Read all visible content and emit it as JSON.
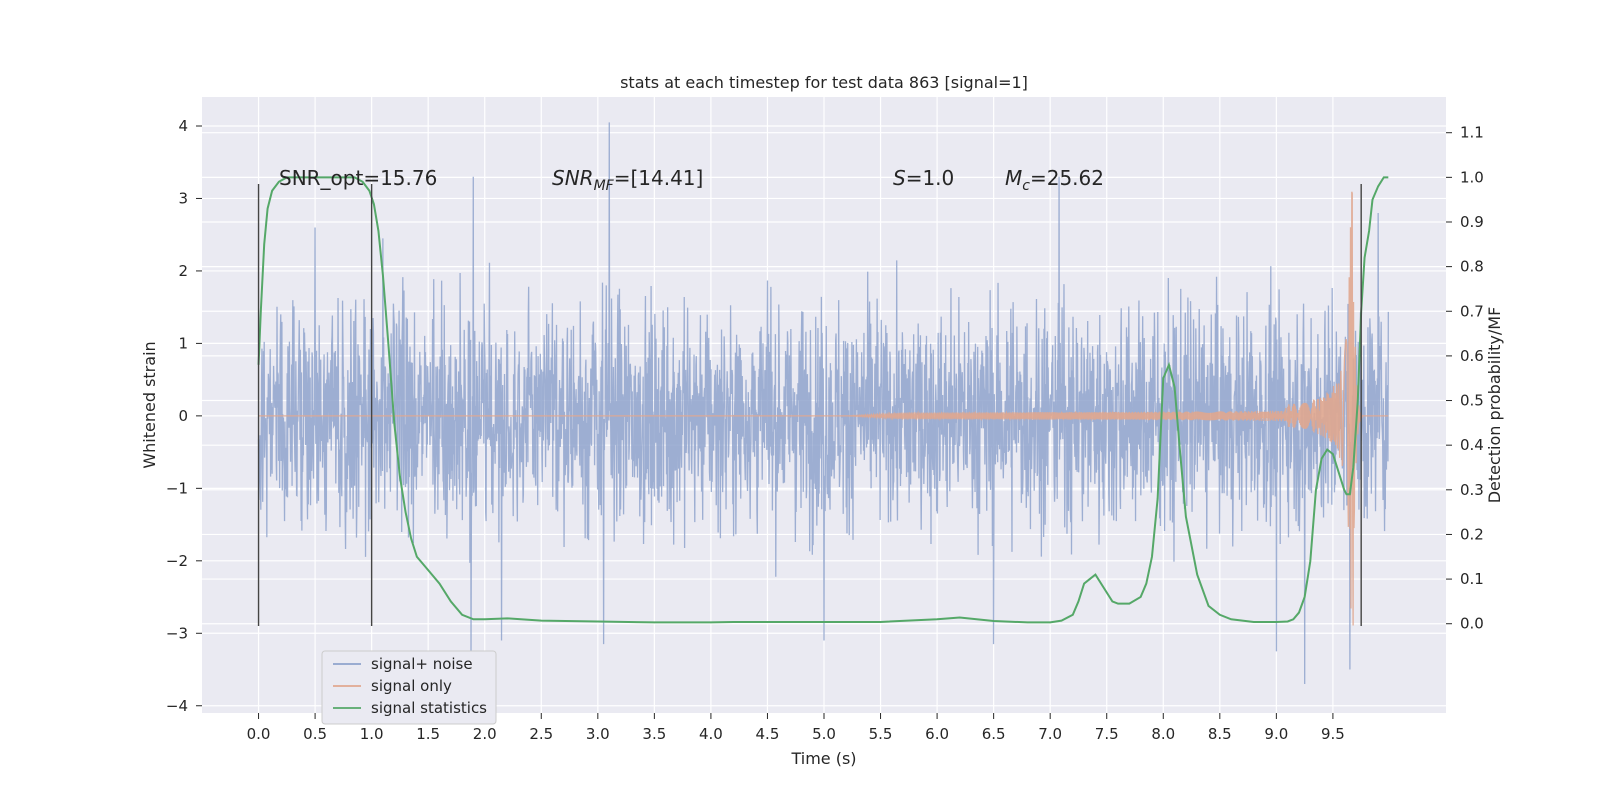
{
  "chart_data": {
    "type": "line",
    "title": "stats at each timestep for test data 863 [signal=1]",
    "xlabel": "Time (s)",
    "ylabel": "Whitened strain",
    "ylabel_right": "Detection probability/MF",
    "xlim": [
      -0.5,
      10.5
    ],
    "ylim": [
      -4.1,
      4.4
    ],
    "ylim_right": [
      -0.2,
      1.18
    ],
    "x_ticks": [
      "0.0",
      "0.5",
      "1.0",
      "1.5",
      "2.0",
      "2.5",
      "3.0",
      "3.5",
      "4.0",
      "4.5",
      "5.0",
      "5.5",
      "6.0",
      "6.5",
      "7.0",
      "7.5",
      "8.0",
      "8.5",
      "9.0",
      "9.5"
    ],
    "y_ticks": [
      "−4",
      "−3",
      "−2",
      "−1",
      "0",
      "1",
      "2",
      "3",
      "4"
    ],
    "y_ticks_right": [
      "0.0",
      "0.1",
      "0.2",
      "0.3",
      "0.4",
      "0.5",
      "0.6",
      "0.7",
      "0.8",
      "0.9",
      "1.0",
      "1.1"
    ],
    "grid": true,
    "legend_position": "lower-left",
    "legend": [
      {
        "label": "signal+ noise",
        "color": "#8fa3cc"
      },
      {
        "label": "signal only",
        "color": "#e0a78f"
      },
      {
        "label": "signal statistics",
        "color": "#55a868"
      }
    ],
    "annotations": {
      "snr_opt": "SNR_opt=15.76",
      "snr_mf_main": "SNR",
      "snr_mf_sub": "MF",
      "snr_mf_value": "=[14.41]",
      "s_main": "S",
      "s_value": "=1.0",
      "mc_main": "M",
      "mc_sub": "c",
      "mc_value": "=25.62"
    },
    "vertical_markers_s": [
      0.0,
      1.0,
      9.75
    ],
    "series": [
      {
        "name": "signal+ noise",
        "axis": "left",
        "color": "#8fa3cc",
        "x_range": [
          0.0,
          9.99
        ],
        "typical_abs": 1.35,
        "peaks": [
          {
            "x": 0.5,
            "y": 2.6
          },
          {
            "x": 1.1,
            "y": 2.45
          },
          {
            "x": 1.9,
            "y": 3.3
          },
          {
            "x": 1.88,
            "y": -3.3
          },
          {
            "x": 2.15,
            "y": -3.1
          },
          {
            "x": 3.05,
            "y": -3.15
          },
          {
            "x": 3.1,
            "y": 4.05
          },
          {
            "x": 5.0,
            "y": -3.1
          },
          {
            "x": 6.5,
            "y": -3.15
          },
          {
            "x": 7.08,
            "y": 3.3
          },
          {
            "x": 9.0,
            "y": -3.25
          },
          {
            "x": 9.25,
            "y": -3.7
          },
          {
            "x": 9.65,
            "y": -3.5
          },
          {
            "x": 9.9,
            "y": 2.8
          }
        ]
      },
      {
        "name": "signal only",
        "axis": "left",
        "color": "#e0a78f",
        "model": "chirp",
        "onset_x": 5.2,
        "merger_x": 9.68,
        "peak_amplitude": 3.1,
        "end_x": 9.99
      },
      {
        "name": "signal statistics",
        "axis": "right",
        "color": "#55a868",
        "x": [
          0.0,
          0.02,
          0.05,
          0.08,
          0.12,
          0.18,
          0.25,
          0.35,
          0.5,
          0.7,
          0.85,
          0.92,
          0.98,
          1.02,
          1.06,
          1.1,
          1.15,
          1.2,
          1.25,
          1.3,
          1.35,
          1.4,
          1.5,
          1.6,
          1.7,
          1.8,
          1.9,
          2.0,
          2.2,
          2.5,
          3.0,
          3.5,
          4.0,
          4.2,
          4.6,
          5.0,
          5.5,
          6.0,
          6.2,
          6.5,
          6.8,
          7.0,
          7.1,
          7.2,
          7.25,
          7.3,
          7.35,
          7.4,
          7.5,
          7.55,
          7.6,
          7.7,
          7.8,
          7.85,
          7.9,
          7.95,
          8.0,
          8.05,
          8.1,
          8.15,
          8.2,
          8.3,
          8.4,
          8.5,
          8.6,
          8.8,
          9.0,
          9.1,
          9.15,
          9.2,
          9.25,
          9.3,
          9.35,
          9.4,
          9.45,
          9.5,
          9.55,
          9.6,
          9.62,
          9.65,
          9.68,
          9.72,
          9.75,
          9.78,
          9.82,
          9.85,
          9.9,
          9.95,
          9.99
        ],
        "values": [
          0.58,
          0.7,
          0.85,
          0.93,
          0.97,
          0.99,
          1.0,
          1.0,
          1.0,
          1.0,
          1.0,
          0.99,
          0.97,
          0.94,
          0.88,
          0.78,
          0.62,
          0.45,
          0.33,
          0.25,
          0.19,
          0.15,
          0.12,
          0.09,
          0.05,
          0.02,
          0.01,
          0.01,
          0.012,
          0.007,
          0.005,
          0.003,
          0.003,
          0.004,
          0.004,
          0.004,
          0.004,
          0.01,
          0.014,
          0.006,
          0.003,
          0.003,
          0.007,
          0.02,
          0.05,
          0.09,
          0.1,
          0.11,
          0.07,
          0.05,
          0.045,
          0.045,
          0.06,
          0.09,
          0.15,
          0.28,
          0.55,
          0.58,
          0.53,
          0.38,
          0.24,
          0.11,
          0.04,
          0.02,
          0.01,
          0.004,
          0.004,
          0.005,
          0.01,
          0.025,
          0.06,
          0.14,
          0.3,
          0.37,
          0.39,
          0.38,
          0.34,
          0.3,
          0.29,
          0.29,
          0.35,
          0.5,
          0.7,
          0.82,
          0.88,
          0.95,
          0.98,
          1.0,
          1.0
        ]
      }
    ]
  }
}
